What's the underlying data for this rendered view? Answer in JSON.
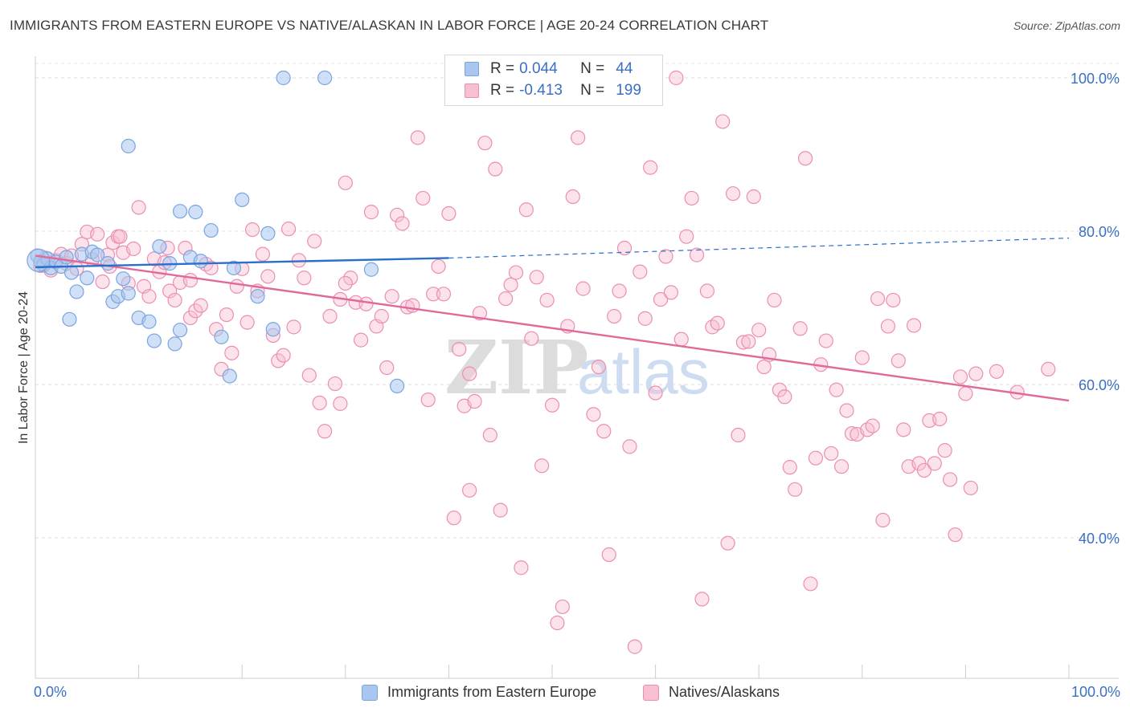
{
  "title": "IMMIGRANTS FROM EASTERN EUROPE VS NATIVE/ALASKAN IN LABOR FORCE | AGE 20-24 CORRELATION CHART",
  "source": "Source: ZipAtlas.com",
  "watermark": {
    "zip": "ZIP",
    "atlas": "atlas"
  },
  "colors": {
    "blue_fill": "#a9c6ef",
    "blue_stroke": "#7aa5e0",
    "blue_line": "#2a6fcb",
    "pink_fill": "#f6bfd2",
    "pink_stroke": "#eb8fb0",
    "pink_line": "#e0699a",
    "tick_text": "#3a6fc4",
    "grid": "#dddddd"
  },
  "legend": {
    "rows": [
      {
        "r_label": "R =",
        "r_value": "0.044",
        "n_label": "N =",
        "n_value": "44"
      },
      {
        "r_label": "R =",
        "r_value": "-0.413",
        "n_label": "N =",
        "n_value": "199"
      }
    ]
  },
  "chart_data": {
    "type": "scatter",
    "title": "IMMIGRANTS FROM EASTERN EUROPE VS NATIVE/ALASKAN IN LABOR FORCE | AGE 20-24 CORRELATION CHART",
    "xlabel": "",
    "ylabel": "In Labor Force | Age 20-24",
    "xlim": [
      0,
      100
    ],
    "ylim": [
      20,
      103
    ],
    "x_tick_labels": [
      "0.0%",
      "100.0%"
    ],
    "y_ticks": [
      40,
      60,
      80,
      100
    ],
    "y_tick_labels": [
      "40.0%",
      "60.0%",
      "80.0%",
      "100.0%"
    ],
    "series": [
      {
        "name": "Immigrants from Eastern Europe",
        "color": "#a9c6ef",
        "r": 0.044,
        "n": 44,
        "trend": {
          "x0": 0,
          "y0": 75.3,
          "x1": 40,
          "y1": 76.5,
          "dash_x1": 100,
          "dash_y1": 79.1
        },
        "points": [
          [
            0.2,
            76.8
          ],
          [
            0.5,
            76.0
          ],
          [
            0.8,
            75.6
          ],
          [
            1.2,
            76.4
          ],
          [
            1.5,
            75.2
          ],
          [
            2.0,
            76.0
          ],
          [
            2.5,
            75.4
          ],
          [
            3.0,
            76.6
          ],
          [
            3.5,
            74.6
          ],
          [
            4.0,
            72.1
          ],
          [
            4.5,
            77.0
          ],
          [
            5.0,
            73.9
          ],
          [
            5.5,
            77.3
          ],
          [
            6.0,
            76.9
          ],
          [
            7.0,
            75.8
          ],
          [
            7.5,
            70.8
          ],
          [
            8.0,
            71.5
          ],
          [
            8.5,
            73.8
          ],
          [
            9.0,
            71.9
          ],
          [
            10.0,
            68.7
          ],
          [
            11.0,
            68.2
          ],
          [
            12.0,
            78.0
          ],
          [
            13.0,
            75.8
          ],
          [
            14.0,
            67.1
          ],
          [
            15.0,
            76.6
          ],
          [
            16.0,
            76.1
          ],
          [
            17.0,
            80.1
          ],
          [
            18.0,
            66.2
          ],
          [
            18.8,
            61.1
          ],
          [
            19.2,
            75.2
          ],
          [
            20.0,
            84.1
          ],
          [
            21.5,
            71.5
          ],
          [
            22.5,
            79.7
          ],
          [
            23.0,
            67.2
          ],
          [
            24.0,
            100.0
          ],
          [
            28.0,
            100.0
          ],
          [
            9.0,
            91.1
          ],
          [
            14.0,
            82.6
          ],
          [
            15.5,
            82.5
          ],
          [
            11.5,
            65.7
          ],
          [
            13.5,
            65.3
          ],
          [
            32.5,
            75.0
          ],
          [
            35.0,
            59.8
          ],
          [
            3.3,
            68.5
          ]
        ]
      },
      {
        "name": "Natives/Alaskans",
        "color": "#f6bfd2",
        "r": -0.413,
        "n": 199,
        "trend": {
          "x0": 0,
          "y0": 76.8,
          "x1": 100,
          "y1": 57.9
        },
        "points": [
          [
            0.5,
            75.5
          ],
          [
            1.0,
            76.5
          ],
          [
            1.5,
            74.9
          ],
          [
            2.0,
            76.2
          ],
          [
            2.5,
            77.0
          ],
          [
            3.0,
            75.8
          ],
          [
            3.5,
            76.8
          ],
          [
            4.0,
            75.1
          ],
          [
            4.5,
            78.3
          ],
          [
            5.0,
            79.9
          ],
          [
            5.5,
            76.3
          ],
          [
            6.0,
            79.6
          ],
          [
            6.5,
            73.4
          ],
          [
            7.0,
            76.9
          ],
          [
            7.5,
            78.5
          ],
          [
            8.0,
            79.3
          ],
          [
            8.5,
            77.2
          ],
          [
            9.0,
            73.2
          ],
          [
            9.5,
            77.7
          ],
          [
            10.0,
            83.1
          ],
          [
            10.5,
            72.8
          ],
          [
            11.0,
            71.5
          ],
          [
            11.5,
            76.4
          ],
          [
            12.0,
            74.7
          ],
          [
            12.5,
            75.9
          ],
          [
            13.0,
            72.2
          ],
          [
            13.5,
            71.0
          ],
          [
            14.0,
            73.3
          ],
          [
            14.5,
            77.8
          ],
          [
            15.0,
            68.7
          ],
          [
            15.5,
            69.6
          ],
          [
            16.0,
            70.3
          ],
          [
            16.5,
            75.7
          ],
          [
            17.0,
            75.2
          ],
          [
            17.5,
            67.2
          ],
          [
            18.0,
            62.0
          ],
          [
            18.5,
            69.1
          ],
          [
            19.0,
            64.1
          ],
          [
            19.5,
            72.8
          ],
          [
            20.0,
            75.1
          ],
          [
            20.5,
            68.1
          ],
          [
            21.0,
            80.2
          ],
          [
            21.5,
            72.2
          ],
          [
            22.0,
            77.0
          ],
          [
            22.5,
            74.1
          ],
          [
            23.0,
            66.4
          ],
          [
            23.5,
            63.1
          ],
          [
            24.0,
            63.8
          ],
          [
            24.5,
            80.3
          ],
          [
            25.0,
            67.5
          ],
          [
            25.5,
            76.2
          ],
          [
            26.0,
            73.9
          ],
          [
            26.5,
            61.2
          ],
          [
            27.0,
            78.7
          ],
          [
            27.5,
            57.6
          ],
          [
            28.0,
            53.9
          ],
          [
            28.5,
            68.9
          ],
          [
            29.0,
            60.1
          ],
          [
            29.5,
            71.1
          ],
          [
            30.0,
            86.3
          ],
          [
            30.5,
            73.9
          ],
          [
            31.0,
            70.7
          ],
          [
            31.5,
            65.8
          ],
          [
            32.0,
            70.5
          ],
          [
            32.5,
            82.5
          ],
          [
            33.0,
            67.6
          ],
          [
            33.5,
            68.9
          ],
          [
            34.0,
            62.2
          ],
          [
            34.5,
            71.5
          ],
          [
            35.0,
            82.1
          ],
          [
            35.5,
            81.0
          ],
          [
            36.0,
            70.1
          ],
          [
            36.5,
            70.3
          ],
          [
            37.0,
            92.2
          ],
          [
            37.5,
            84.3
          ],
          [
            38.0,
            58.0
          ],
          [
            38.5,
            71.8
          ],
          [
            39.0,
            75.4
          ],
          [
            39.5,
            71.8
          ],
          [
            40.0,
            82.3
          ],
          [
            40.5,
            42.6
          ],
          [
            41.0,
            64.6
          ],
          [
            41.5,
            57.2
          ],
          [
            42.0,
            46.2
          ],
          [
            42.5,
            57.8
          ],
          [
            43.0,
            69.3
          ],
          [
            43.5,
            91.5
          ],
          [
            44.0,
            53.4
          ],
          [
            44.5,
            88.1
          ],
          [
            45.0,
            43.6
          ],
          [
            45.5,
            71.2
          ],
          [
            46.0,
            73.0
          ],
          [
            46.5,
            74.6
          ],
          [
            47.0,
            36.1
          ],
          [
            47.5,
            82.8
          ],
          [
            48.0,
            66.0
          ],
          [
            48.5,
            74.0
          ],
          [
            49.0,
            49.4
          ],
          [
            49.5,
            71.0
          ],
          [
            50.0,
            57.3
          ],
          [
            50.5,
            28.9
          ],
          [
            51.0,
            31.0
          ],
          [
            51.5,
            67.6
          ],
          [
            52.0,
            84.5
          ],
          [
            52.5,
            92.2
          ],
          [
            53.0,
            72.5
          ],
          [
            53.5,
            100.0
          ],
          [
            54.0,
            56.1
          ],
          [
            54.5,
            62.3
          ],
          [
            55.0,
            53.9
          ],
          [
            55.5,
            37.8
          ],
          [
            56.0,
            68.9
          ],
          [
            56.5,
            72.2
          ],
          [
            57.0,
            77.8
          ],
          [
            57.5,
            51.9
          ],
          [
            58.0,
            25.8
          ],
          [
            58.5,
            74.7
          ],
          [
            59.0,
            68.6
          ],
          [
            59.5,
            88.3
          ],
          [
            60.0,
            58.9
          ],
          [
            60.5,
            71.1
          ],
          [
            61.0,
            76.7
          ],
          [
            61.5,
            72.0
          ],
          [
            62.0,
            100.0
          ],
          [
            62.5,
            65.9
          ],
          [
            63.0,
            79.3
          ],
          [
            63.5,
            84.3
          ],
          [
            64.0,
            76.9
          ],
          [
            64.5,
            32.0
          ],
          [
            65.0,
            72.2
          ],
          [
            65.5,
            67.5
          ],
          [
            66.0,
            68.0
          ],
          [
            66.5,
            94.3
          ],
          [
            67.0,
            39.3
          ],
          [
            67.5,
            84.9
          ],
          [
            68.0,
            53.4
          ],
          [
            68.5,
            65.5
          ],
          [
            69.0,
            65.6
          ],
          [
            69.5,
            84.5
          ],
          [
            70.0,
            67.1
          ],
          [
            70.5,
            62.3
          ],
          [
            71.0,
            63.9
          ],
          [
            71.5,
            71.0
          ],
          [
            72.0,
            59.3
          ],
          [
            72.5,
            58.4
          ],
          [
            73.0,
            49.2
          ],
          [
            73.5,
            46.3
          ],
          [
            74.0,
            67.3
          ],
          [
            74.5,
            89.5
          ],
          [
            75.0,
            34.0
          ],
          [
            75.5,
            50.4
          ],
          [
            76.0,
            62.6
          ],
          [
            76.5,
            65.7
          ],
          [
            77.0,
            51.0
          ],
          [
            77.5,
            59.3
          ],
          [
            78.0,
            49.3
          ],
          [
            78.5,
            56.6
          ],
          [
            79.0,
            53.6
          ],
          [
            79.5,
            53.5
          ],
          [
            80.0,
            63.5
          ],
          [
            80.5,
            54.1
          ],
          [
            81.0,
            54.6
          ],
          [
            81.5,
            71.2
          ],
          [
            82.0,
            42.3
          ],
          [
            82.5,
            67.6
          ],
          [
            83.0,
            71.0
          ],
          [
            83.5,
            63.1
          ],
          [
            84.0,
            54.1
          ],
          [
            84.5,
            49.3
          ],
          [
            85.0,
            67.7
          ],
          [
            85.5,
            49.7
          ],
          [
            86.0,
            48.8
          ],
          [
            86.5,
            55.3
          ],
          [
            87.0,
            49.7
          ],
          [
            87.5,
            55.5
          ],
          [
            88.0,
            51.4
          ],
          [
            88.5,
            47.6
          ],
          [
            89.0,
            40.4
          ],
          [
            89.5,
            61.0
          ],
          [
            90.0,
            58.8
          ],
          [
            90.5,
            46.5
          ],
          [
            91.0,
            61.4
          ],
          [
            29.5,
            57.5
          ],
          [
            42.0,
            61.4
          ],
          [
            8.2,
            79.3
          ],
          [
            12.8,
            77.8
          ],
          [
            7.2,
            75.4
          ],
          [
            15.0,
            73.6
          ],
          [
            30.0,
            73.2
          ],
          [
            93.0,
            61.7
          ],
          [
            95.0,
            59.0
          ],
          [
            98.0,
            62.0
          ]
        ]
      }
    ],
    "legend": [
      "Immigrants from Eastern Europe",
      "Natives/Alaskans"
    ]
  }
}
